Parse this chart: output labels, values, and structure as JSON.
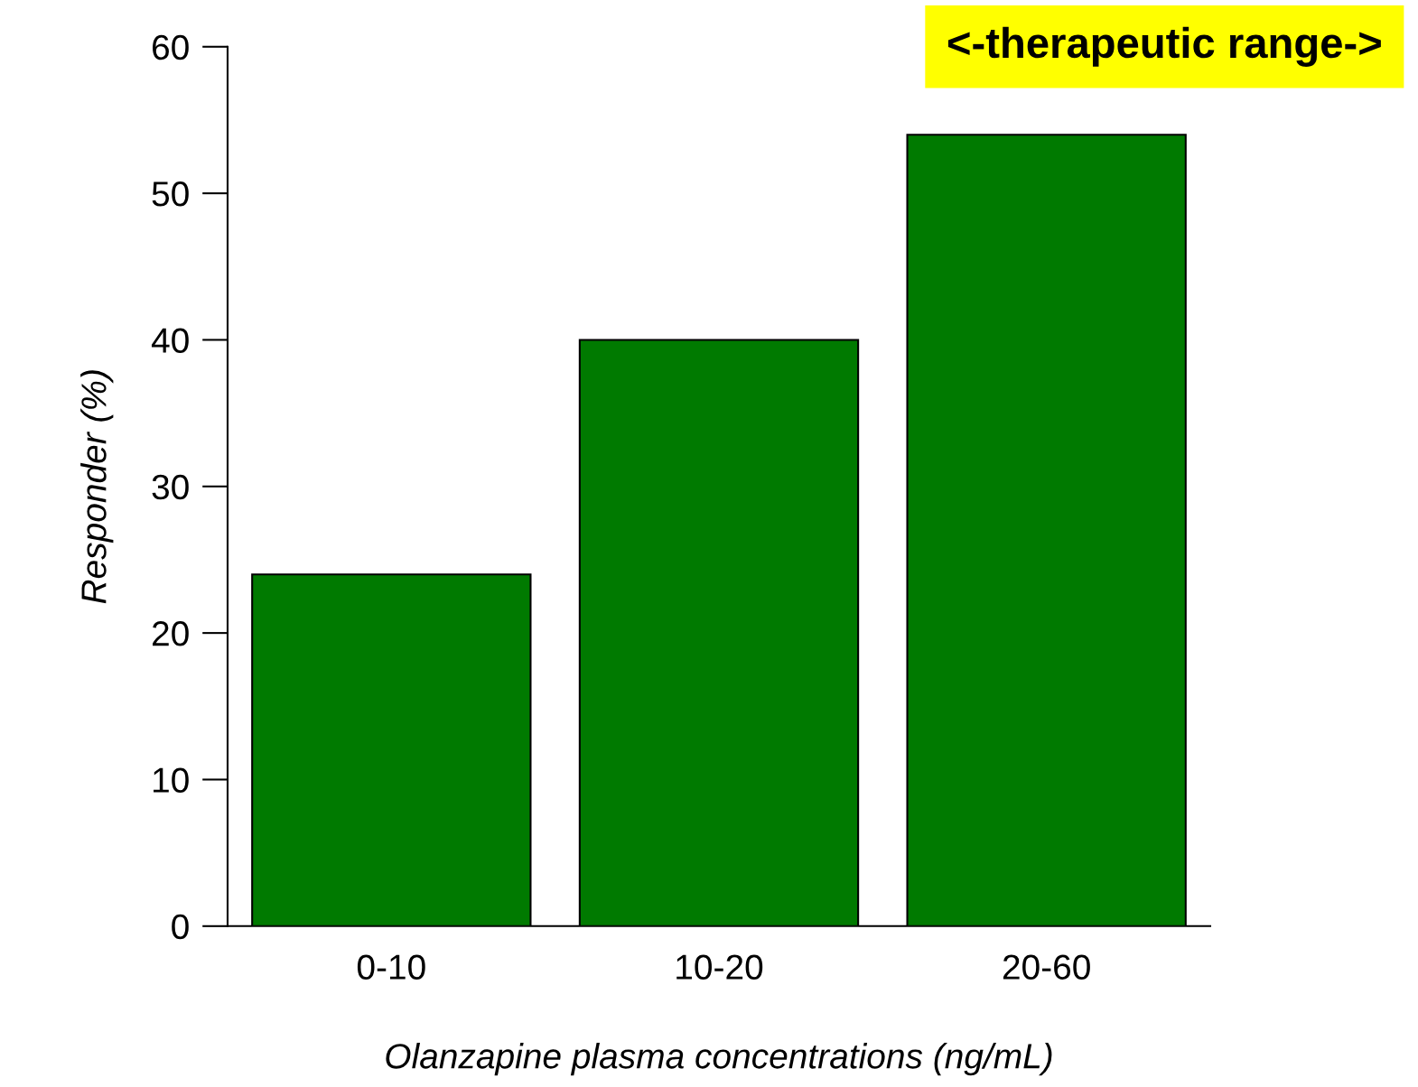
{
  "chart_data": {
    "type": "bar",
    "categories": [
      "0-10",
      "10-20",
      "20-60"
    ],
    "values": [
      24,
      40,
      54
    ],
    "color": "#007a00",
    "xlabel": "Olanzapine plasma concentrations (ng/mL)",
    "ylabel": "Responder (%)",
    "ylim": [
      0,
      60
    ],
    "yticks": [
      0,
      10,
      20,
      30,
      40,
      50,
      60
    ],
    "annotations": [
      "<-therapeutic range->"
    ],
    "grid": false
  }
}
